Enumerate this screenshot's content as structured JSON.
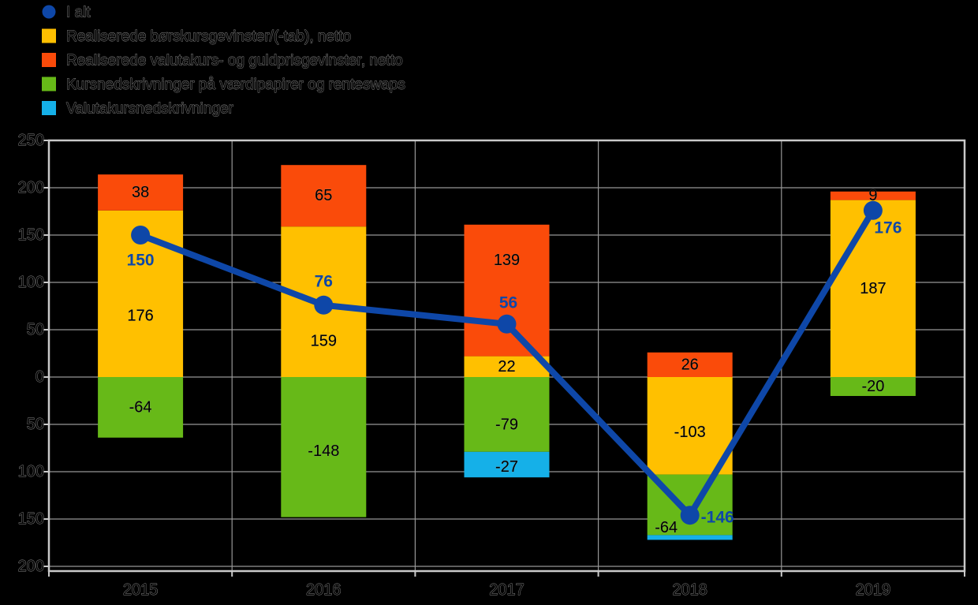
{
  "chart_data": {
    "type": "stacked-bar-with-line",
    "title": "",
    "categories": [
      "2015",
      "2016",
      "2017",
      "2018",
      "2019"
    ],
    "bar_series": [
      {
        "name": "Realiserede børskursgevinster/(-tab), netto",
        "color": "#FFC000",
        "values": [
          176,
          159,
          22,
          -103,
          187
        ]
      },
      {
        "name": "Realiserede valutakurs- og guldprisgevinster, netto",
        "color": "#FA4B0A",
        "values": [
          38,
          65,
          139,
          26,
          9
        ]
      },
      {
        "name": "Kursnedskrivninger på værdipapirer og renteswaps",
        "color": "#67B918",
        "values": [
          -64,
          -148,
          -79,
          -64,
          -20
        ]
      },
      {
        "name": "Valutakursnedskrivninger",
        "color": "#15B0E8",
        "values": [
          0,
          0,
          -27,
          -5,
          0
        ]
      }
    ],
    "line_series": {
      "name": "I alt",
      "color": "#0E47A8",
      "values": [
        150,
        76,
        56,
        -146,
        176
      ]
    },
    "y_axis": {
      "min": -205,
      "max": 250,
      "tick_step": 50,
      "tick_values": [
        250,
        200,
        150,
        100,
        50,
        0,
        -50,
        -100,
        -150,
        -200
      ],
      "tick_labels": [
        "250",
        "200",
        "150",
        "100",
        "50",
        "0",
        "50",
        "100",
        "150",
        "200"
      ]
    },
    "grid": true,
    "legend_position": "top-left",
    "colors": {
      "grid": "#979797",
      "frame": "#C9C9C9",
      "background": "#000000"
    }
  }
}
